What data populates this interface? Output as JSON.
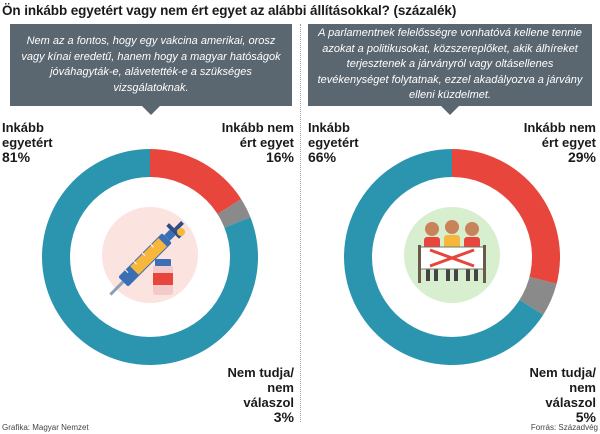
{
  "title": "Ön inkább egyetért vagy nem ért egyet az alábbi állításokkal? (százalék)",
  "colors": {
    "agree": "#2b95b0",
    "disagree": "#e8453c",
    "unknown": "#8a8a8a",
    "box": "#5a6670",
    "icon_bg": "#fbe3df"
  },
  "panels": [
    {
      "question": "Nem az a fontos, hogy egy vakcina amerikai, orosz vagy kínai eredetű, hanem hogy a magyar hatóságok jóváhagyták-e, alávetették-e a szükséges vizsgálatoknak.",
      "icon": "vaccine-syringe-icon",
      "labels": {
        "agree_text": "Inkább egyetért",
        "agree_pct": "81%",
        "disagree_text": "Inkább nem ért egyet",
        "disagree_pct": "16%",
        "unknown_text": "Nem tudja/ nem válaszol",
        "unknown_pct": "3%"
      }
    },
    {
      "question": "A parlamentnek felelősségre vonhatóvá kellene tennie azokat a politikusokat, közszereplőket, akik álhíreket terjesztenek a járványról vagy oltásellenes tevékenységet folytatnak, ezzel akadályozva a járvány elleni küzdelmet.",
      "icon": "protest-people-banner-icon",
      "labels": {
        "agree_text": "Inkább egyetért",
        "agree_pct": "66%",
        "disagree_text": "Inkább nem ért egyet",
        "disagree_pct": "29%",
        "unknown_text": "Nem tudja/ nem válaszol",
        "unknown_pct": "5%"
      }
    }
  ],
  "chart_data": [
    {
      "type": "pie",
      "title": "Nem az a fontos, hogy egy vakcina amerikai, orosz vagy kínai eredetű, hanem hogy a magyar hatóságok jóváhagyták-e, alávetették-e a szükséges vizsgálatoknak.",
      "categories": [
        "Inkább egyetért",
        "Inkább nem ért egyet",
        "Nem tudja/ nem válaszol"
      ],
      "values": [
        81,
        16,
        3
      ]
    },
    {
      "type": "pie",
      "title": "A parlamentnek felelősségre vonhatóvá kellene tennie azokat a politikusokat, közszereplőket, akik álhíreket terjesztenek a járványról vagy oltásellenes tevékenységet folytatnak, ezzel akadályozva a járvány elleni küzdelmet.",
      "categories": [
        "Inkább egyetért",
        "Inkább nem ért egyet",
        "Nem tudja/ nem válaszol"
      ],
      "values": [
        66,
        29,
        5
      ]
    }
  ],
  "footer": {
    "left": "Grafika: Magyar Nemzet",
    "right": "Forrás: Századvég"
  }
}
